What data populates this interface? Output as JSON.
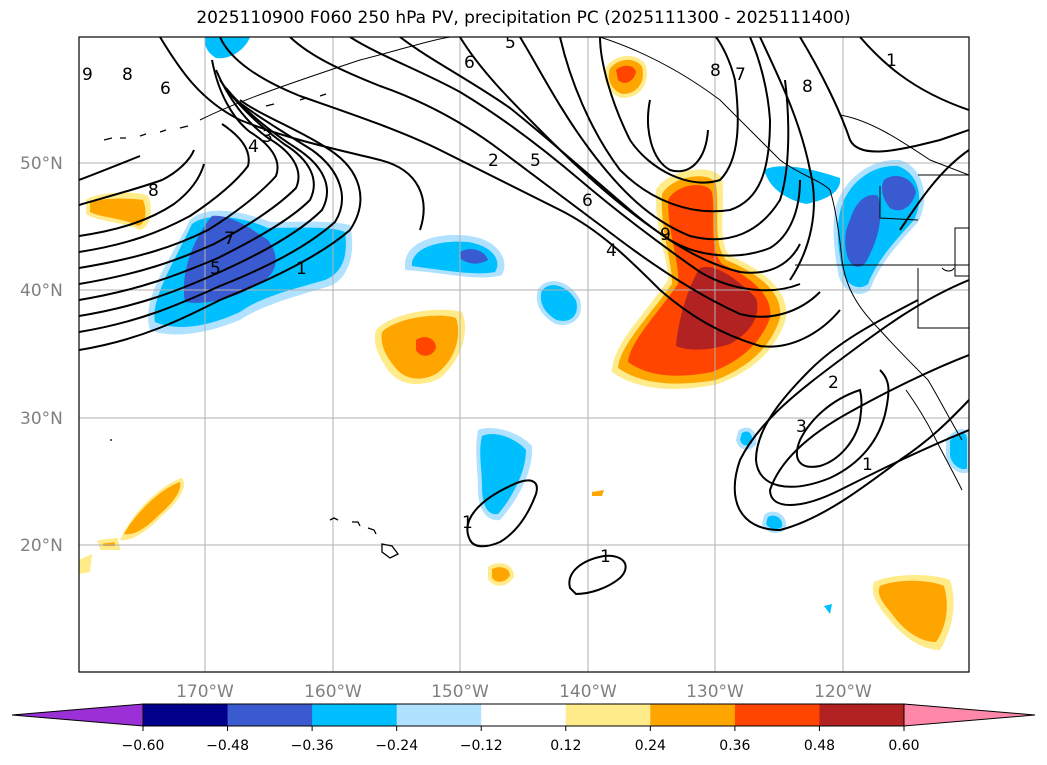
{
  "title": "2025110900 F060 250 hPa PV, precipitation PC (2025111300 - 2025111400)",
  "map": {
    "lon_ticks": [
      "170°W",
      "160°W",
      "150°W",
      "140°W",
      "130°W",
      "120°W"
    ],
    "lat_ticks": [
      "50°N",
      "40°N",
      "30°N",
      "20°N"
    ],
    "gridlines": true
  },
  "contours": {
    "labels": [
      "9",
      "8",
      "6",
      "6",
      "5",
      "8",
      "7",
      "8",
      "3",
      "4",
      "2",
      "5",
      "6",
      "4",
      "8",
      "9",
      "7",
      "5",
      "1",
      "1",
      "2",
      "3",
      "1",
      "1",
      "1"
    ]
  },
  "colorbar": {
    "ticks": [
      "−0.60",
      "−0.48",
      "−0.36",
      "−0.24",
      "−0.12",
      "0.12",
      "0.24",
      "0.36",
      "0.48",
      "0.60"
    ],
    "colors": [
      "#9b30d6",
      "#00008b",
      "#3a5bd0",
      "#00bfff",
      "#b0e2ff",
      "#ffffff",
      "#ffeb8a",
      "#ffa500",
      "#ff4500",
      "#b22222",
      "#ff88aa"
    ],
    "extend": "both"
  }
}
